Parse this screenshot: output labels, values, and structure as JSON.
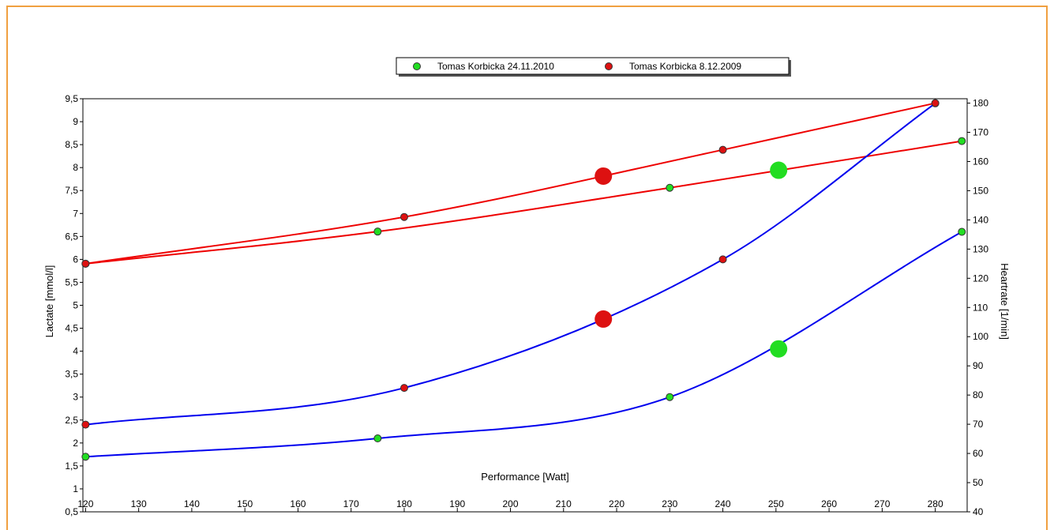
{
  "chart_data": {
    "type": "line",
    "xlabel": "Performance [Watt]",
    "ylabel_left": "Lactate [mmol/l]",
    "ylabel_right": "Heartrate [1/min]",
    "x_ticks": [
      "120",
      "130",
      "140",
      "150",
      "160",
      "170",
      "180",
      "190",
      "200",
      "210",
      "220",
      "230",
      "240",
      "250",
      "260",
      "270",
      "280"
    ],
    "y_left_ticks": [
      "0,5",
      "1",
      "1,5",
      "2",
      "2,5",
      "3",
      "3,5",
      "4",
      "4,5",
      "5",
      "5,5",
      "6",
      "6,5",
      "7",
      "7,5",
      "8",
      "8,5",
      "9",
      "9,5"
    ],
    "y_right_ticks": [
      "40",
      "50",
      "60",
      "70",
      "80",
      "90",
      "100",
      "110",
      "120",
      "130",
      "140",
      "150",
      "160",
      "170",
      "180"
    ],
    "xlim": [
      119.5,
      286
    ],
    "ylim_left": [
      0.5,
      9.5
    ],
    "ylim_right": [
      40,
      181.5
    ],
    "grid": false,
    "legend_position": "top-center",
    "legend": [
      {
        "label": "Tomas Korbicka 24.11.2010",
        "color": "#22dd22"
      },
      {
        "label": "Tomas Korbicka 8.12.2009",
        "color": "#dd1111"
      }
    ],
    "series": [
      {
        "name": "Tomas Korbicka 24.11.2010",
        "marker_color": "#22dd22",
        "lactate": {
          "x": [
            120,
            175,
            230,
            285
          ],
          "y": [
            1.7,
            2.1,
            3.0,
            6.6
          ]
        },
        "heartrate": {
          "x": [
            120,
            175,
            230,
            285
          ],
          "y": [
            125,
            136,
            151,
            167
          ]
        },
        "threshold": {
          "x": 250.5,
          "lactate": 4.05,
          "heartrate": 157
        }
      },
      {
        "name": "Tomas Korbicka 8.12.2009",
        "marker_color": "#dd1111",
        "lactate": {
          "x": [
            120,
            180,
            240,
            280
          ],
          "y": [
            2.4,
            3.2,
            6.0,
            9.4
          ]
        },
        "heartrate": {
          "x": [
            120,
            180,
            240,
            280
          ],
          "y": [
            125,
            141,
            164,
            180
          ]
        },
        "threshold": {
          "x": 217.5,
          "lactate": 4.7,
          "heartrate": 155
        }
      }
    ],
    "lactate_line_color": "#0000ee",
    "heartrate_line_color": "#ee0000",
    "frame_color": "#f0a040"
  }
}
